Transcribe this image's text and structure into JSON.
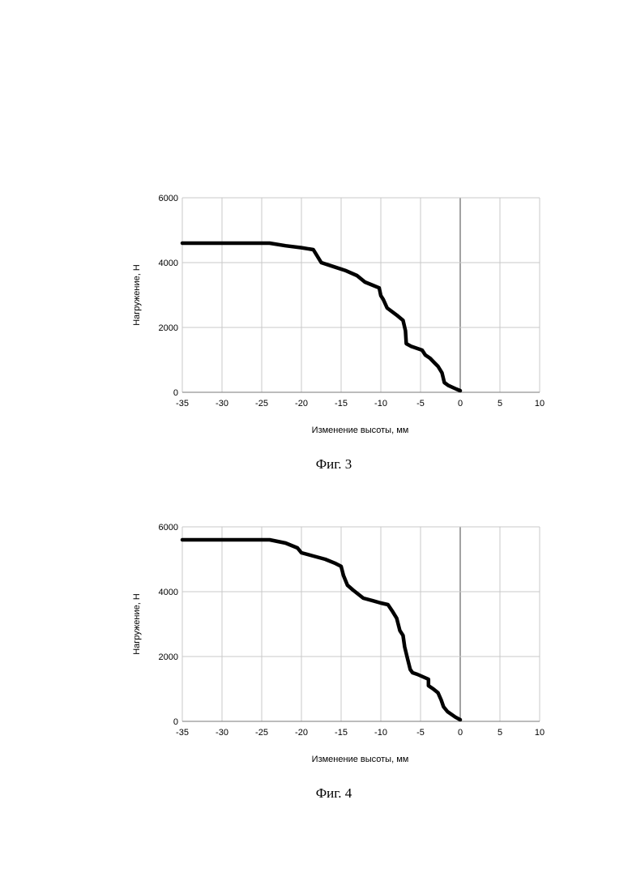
{
  "figures": {
    "fig3": {
      "caption": "Фиг. 3"
    },
    "fig4": {
      "caption": "Фиг. 4"
    }
  },
  "colors": {
    "line": "#000000",
    "grid": "#c8c8c8",
    "zero_line": "#7a7a7a"
  },
  "chart_data": [
    {
      "type": "line",
      "title": "",
      "xlabel": "Изменение высоты, мм",
      "ylabel": "Нагружение, Н",
      "xlim": [
        -35,
        10
      ],
      "ylim": [
        0,
        6000
      ],
      "xticks": [
        -35,
        -30,
        -25,
        -20,
        -15,
        -10,
        -5,
        0,
        5,
        10
      ],
      "yticks": [
        0,
        2000,
        4000,
        6000
      ],
      "grid": true,
      "legend": "none",
      "series": [
        {
          "x": [
            -35,
            -24,
            -22,
            -20,
            -18.5,
            -17.5,
            -16,
            -14.5,
            -13,
            -12,
            -11,
            -10.2,
            -10,
            -9.7,
            -9.2,
            -8,
            -7.2,
            -6.9,
            -6.8,
            -6.2,
            -4.8,
            -4.4,
            -3.8,
            -3.2,
            -2.8,
            -2.3,
            -2,
            -1.5,
            -0.5,
            0
          ],
          "y": [
            4600,
            4600,
            4520,
            4460,
            4400,
            4000,
            3880,
            3760,
            3600,
            3400,
            3300,
            3220,
            2980,
            2870,
            2600,
            2380,
            2220,
            1900,
            1500,
            1420,
            1300,
            1150,
            1050,
            900,
            800,
            600,
            300,
            210,
            100,
            50
          ]
        }
      ]
    },
    {
      "type": "line",
      "title": "",
      "xlabel": "Изменение высоты, мм",
      "ylabel": "Нагружение, Н",
      "xlim": [
        -35,
        10
      ],
      "ylim": [
        0,
        6000
      ],
      "xticks": [
        -35,
        -30,
        -25,
        -20,
        -15,
        -10,
        -5,
        0,
        5,
        10
      ],
      "yticks": [
        0,
        2000,
        4000,
        6000
      ],
      "grid": true,
      "legend": "none",
      "series": [
        {
          "x": [
            -35,
            -24,
            -22,
            -20.5,
            -20,
            -18.5,
            -17,
            -15.8,
            -15,
            -14.7,
            -14.2,
            -13.5,
            -12.2,
            -11,
            -10,
            -9.1,
            -8.5,
            -8,
            -7.6,
            -7.2,
            -7,
            -6.7,
            -6.3,
            -6,
            -5.4,
            -4,
            -4,
            -3.4,
            -2.8,
            -2.4,
            -2.1,
            -1.6,
            -0.6,
            0
          ],
          "y": [
            5600,
            5600,
            5500,
            5350,
            5200,
            5100,
            5000,
            4880,
            4780,
            4500,
            4200,
            4050,
            3800,
            3720,
            3650,
            3600,
            3380,
            3180,
            2800,
            2650,
            2300,
            2000,
            1600,
            1500,
            1450,
            1300,
            1100,
            1000,
            880,
            660,
            450,
            300,
            130,
            50
          ]
        }
      ]
    }
  ]
}
